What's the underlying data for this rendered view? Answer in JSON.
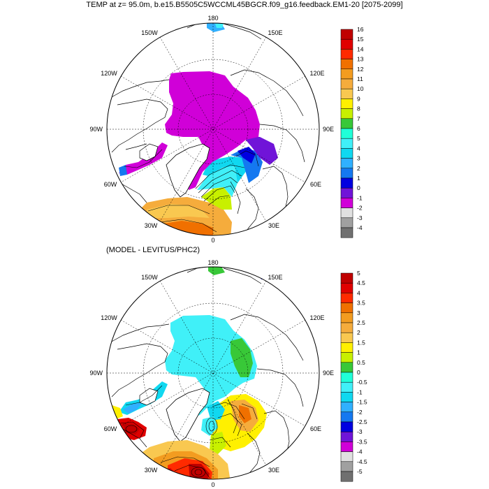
{
  "title": "TEMP at z=  95.0m, b.e15.B5505C5WCCML45BGCR.f09_g16.feedback.EM1-20 [2075-2099]",
  "subtitle": "(MODEL - LEVITUS/PHC2)",
  "longitude_labels": {
    "top": "180",
    "bottom": "0",
    "top_left": "150W",
    "top_right": "150E",
    "upper_left": "120W",
    "upper_right": "120E",
    "left": "90W",
    "right": "90E",
    "lower_left": "60W",
    "lower_right": "60E",
    "bottom_left": "30W",
    "bottom_right": "30E"
  },
  "colorbar_top": {
    "labels": [
      "16",
      "15",
      "14",
      "13",
      "12",
      "11",
      "10",
      "9",
      "8",
      "7",
      "6",
      "5",
      "4",
      "3",
      "2",
      "1",
      "0",
      "-1",
      "-2",
      "-3",
      "-4"
    ],
    "colors": [
      "#c00000",
      "#e00000",
      "#ff2a00",
      "#f07000",
      "#f39c20",
      "#f5ac3c",
      "#f9c850",
      "#fff000",
      "#c8f000",
      "#38c838",
      "#20ffd8",
      "#40f0f8",
      "#10d8f0",
      "#30b0ff",
      "#1478f0",
      "#0000e0",
      "#7014d8",
      "#d000d8",
      "#e0e0e0",
      "#a0a0a0",
      "#707070"
    ]
  },
  "colorbar_bottom": {
    "labels": [
      "5",
      "4.5",
      "4",
      "3.5",
      "3",
      "2.5",
      "2",
      "1.5",
      "1",
      "0.5",
      "0",
      "-0.5",
      "-1",
      "-1.5",
      "-2",
      "-2.5",
      "-3",
      "-3.5",
      "-4",
      "-4.5",
      "-5"
    ],
    "colors": [
      "#c00000",
      "#e00000",
      "#ff2a00",
      "#f07000",
      "#f39c20",
      "#f5ac3c",
      "#f9c850",
      "#fff000",
      "#c8f000",
      "#38c838",
      "#20ffd8",
      "#40f0f8",
      "#10d8f0",
      "#30b0ff",
      "#1478f0",
      "#0000e0",
      "#7014d8",
      "#d000d8",
      "#e0e0e0",
      "#a0a0a0",
      "#707070"
    ]
  }
}
